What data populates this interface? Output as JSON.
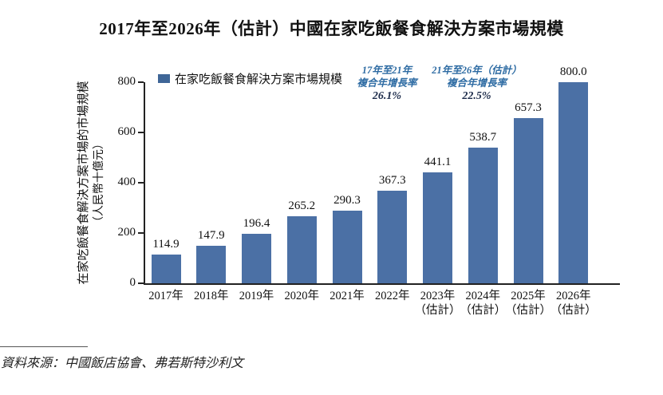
{
  "page_title": "2017年至2026年（估計）中國在家吃飯餐食解決方案市場規模",
  "chart_data": {
    "type": "bar",
    "title": "2017年至2026年（估計）中國在家吃飯餐食解決方案市場規模",
    "categories": [
      "2017年",
      "2018年",
      "2019年",
      "2020年",
      "2021年",
      "2022年",
      "2023年\n（估計）",
      "2024年\n（估計）",
      "2025年\n（估計）",
      "2026年\n（估計）"
    ],
    "values": [
      114.9,
      147.9,
      196.4,
      265.2,
      290.3,
      367.3,
      441.1,
      538.7,
      657.3,
      800.0
    ],
    "ylabel_line1": "在家吃飯餐食解決方案市場的市場規模",
    "ylabel_line2": "（人民幣十億元）",
    "ylim": [
      0,
      800
    ],
    "yticks": [
      0,
      200,
      400,
      600,
      800
    ],
    "grid": false,
    "legend_position": "top-left",
    "legend": {
      "label": "在家吃飯餐食解決方案市場規模"
    },
    "annotations": [
      {
        "line1": "17年至21年",
        "line2": "複合年增長率",
        "value": "26.1%"
      },
      {
        "line1": "21年至26年（估計）",
        "line2": "複合年增長率",
        "value": "22.5%"
      }
    ],
    "bar_color": "#4b70a5"
  },
  "colors": {
    "bar": "#4b70a5",
    "legend_swatch": "#3f6697",
    "annotation_text": "#2d6ba3",
    "annotation_value": "#1c2b4a",
    "axis": "#222222"
  },
  "source_note": "資料來源：中國飯店協會、弗若斯特沙利文"
}
